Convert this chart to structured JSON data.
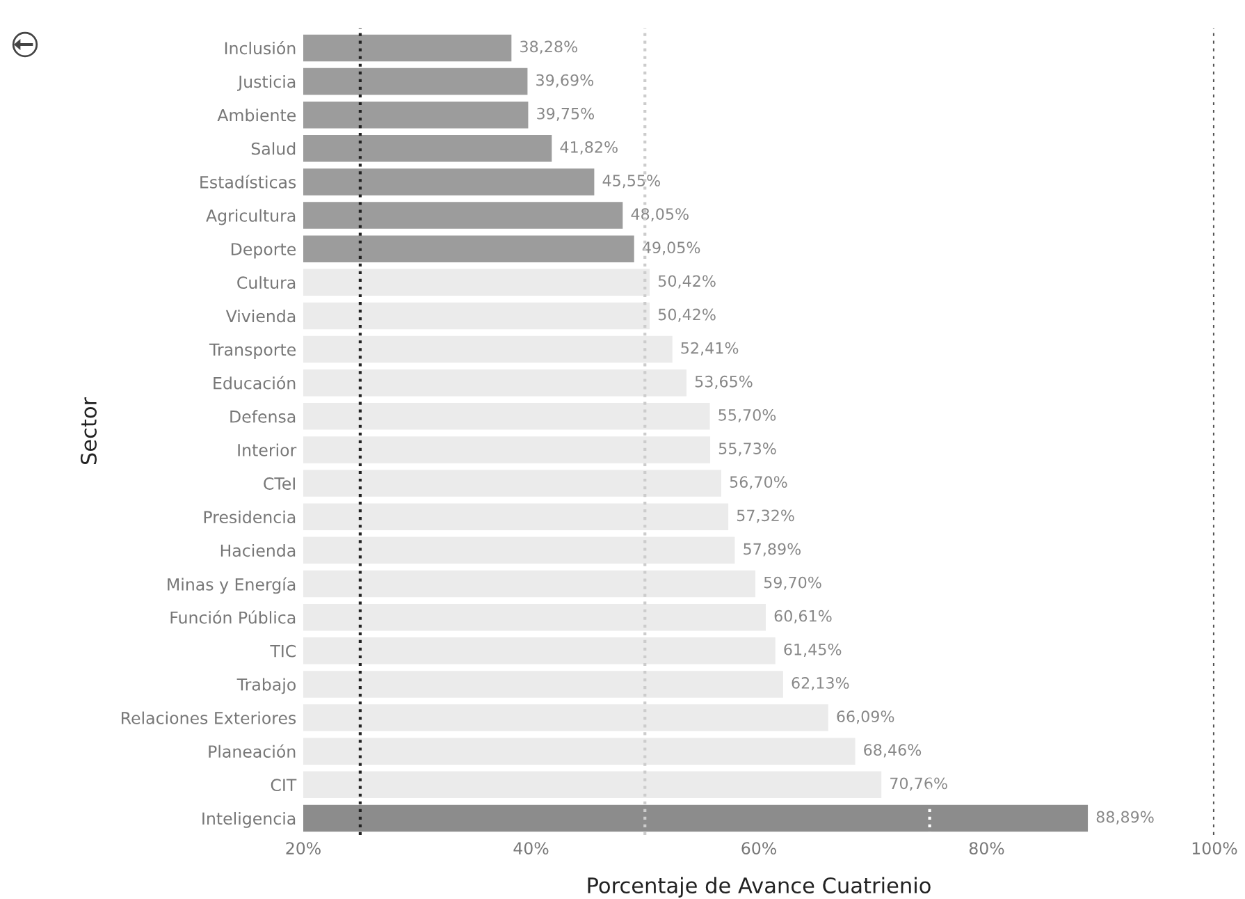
{
  "chart_data": {
    "type": "bar",
    "orientation": "horizontal",
    "xlabel": "Porcentaje de Avance Cuatrienio",
    "ylabel": "Sector",
    "categories": [
      "Inclusión",
      "Justicia",
      "Ambiente",
      "Salud",
      "Estadísticas",
      "Agricultura",
      "Deporte",
      "Cultura",
      "Vivienda",
      "Transporte",
      "Educación",
      "Defensa",
      "Interior",
      "CTeI",
      "Presidencia",
      "Hacienda",
      "Minas y Energía",
      "Función Pública",
      "TIC",
      "Trabajo",
      "Relaciones Exteriores",
      "Planeación",
      "CIT",
      "Inteligencia"
    ],
    "values": [
      38.28,
      39.69,
      39.75,
      41.82,
      45.55,
      48.05,
      49.05,
      50.42,
      50.42,
      52.41,
      53.65,
      55.7,
      55.73,
      56.7,
      57.32,
      57.89,
      59.7,
      60.61,
      61.45,
      62.13,
      66.09,
      68.46,
      70.76,
      88.89
    ],
    "value_labels": [
      "38,28%",
      "39,69%",
      "39,75%",
      "41,82%",
      "45,55%",
      "48,05%",
      "49,05%",
      "50,42%",
      "50,42%",
      "52,41%",
      "53,65%",
      "55,70%",
      "55,73%",
      "56,70%",
      "57,32%",
      "57,89%",
      "59,70%",
      "60,61%",
      "61,45%",
      "62,13%",
      "66,09%",
      "68,46%",
      "70,76%",
      "88,89%"
    ],
    "colors": [
      "#9c9c9c",
      "#9c9c9c",
      "#9c9c9c",
      "#9c9c9c",
      "#9c9c9c",
      "#9c9c9c",
      "#9c9c9c",
      "#ebebeb",
      "#ebebeb",
      "#ebebeb",
      "#ebebeb",
      "#ebebeb",
      "#ebebeb",
      "#ebebeb",
      "#ebebeb",
      "#ebebeb",
      "#ebebeb",
      "#ebebeb",
      "#ebebeb",
      "#ebebeb",
      "#ebebeb",
      "#ebebeb",
      "#ebebeb",
      "#8c8c8c"
    ],
    "xlim": [
      20,
      100
    ],
    "xticks": [
      {
        "value": 20,
        "label": "20%"
      },
      {
        "value": 40,
        "label": "40%"
      },
      {
        "value": 60,
        "label": "60%"
      },
      {
        "value": 80,
        "label": "80%"
      },
      {
        "value": 100,
        "label": "100%"
      }
    ],
    "ref_lines": [
      {
        "axis": "x",
        "value": 25,
        "color": "#222222",
        "line_style": "dotted"
      },
      {
        "axis": "x",
        "value": 50,
        "color": "#cccccc",
        "line_style": "dotted"
      },
      {
        "axis": "x",
        "value": 75,
        "color": "#ffffff",
        "line_style": "dotted"
      },
      {
        "axis": "x",
        "value": 100,
        "color": "#555555",
        "line_style": "dotted"
      }
    ],
    "grid": false,
    "legend": false
  }
}
